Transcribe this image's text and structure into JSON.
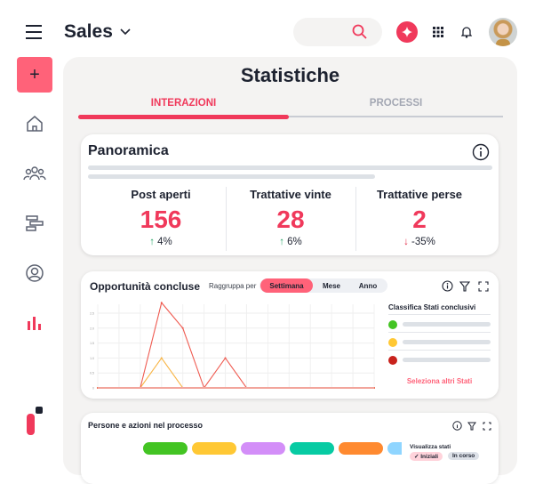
{
  "header": {
    "app_title": "Sales"
  },
  "colors": {
    "accent": "#f0395b",
    "panel": "#f4f3f2"
  },
  "main": {
    "title": "Statistiche",
    "tabs": [
      {
        "label": "INTERAZIONI",
        "active": true
      },
      {
        "label": "PROCESSI",
        "active": false
      }
    ]
  },
  "overview": {
    "title": "Panoramica",
    "stats": [
      {
        "label": "Post aperti",
        "value": "156",
        "delta": "4%",
        "trend": "up"
      },
      {
        "label": "Trattative vinte",
        "value": "28",
        "delta": "6%",
        "trend": "up"
      },
      {
        "label": "Trattative perse",
        "value": "2",
        "delta": "-35%",
        "trend": "down"
      }
    ]
  },
  "opportunities": {
    "title": "Opportunità concluse",
    "group_label": "Raggruppa per",
    "group_options": [
      "Settimana",
      "Mese",
      "Anno"
    ],
    "selected": "Settimana",
    "legend_title": "Classifica Stati conclusivi",
    "legend_colors": [
      "#43c423",
      "#ffc834",
      "#c8221c"
    ],
    "link": "Seleziona altri Stati"
  },
  "chart_data": {
    "type": "line",
    "x": [
      1,
      2,
      3,
      4,
      5,
      6,
      7,
      8,
      9,
      10,
      11,
      12,
      13,
      14
    ],
    "yticks": [
      "0",
      "0.5",
      "1.0",
      "1.5",
      "2.0",
      "2.5"
    ],
    "ylim": [
      0,
      2.5
    ],
    "series": [
      {
        "name": "rosso",
        "color": "#ef5a50",
        "values": [
          0,
          0,
          0,
          2.85,
          2,
          0,
          1,
          0,
          0,
          0,
          0,
          0,
          0,
          0
        ]
      },
      {
        "name": "giallo",
        "color": "#f8b443",
        "values": [
          0,
          0,
          0,
          1,
          0,
          0,
          0,
          0,
          0,
          0,
          0,
          0,
          0,
          0
        ]
      },
      {
        "name": "verde",
        "color": "#a6d98a",
        "values": [
          0,
          0,
          0,
          0,
          0,
          0,
          0,
          0,
          0,
          0,
          0,
          0,
          0,
          0
        ]
      }
    ]
  },
  "process": {
    "title": "Persone e azioni nel processo",
    "show_states": "Visualizza stati",
    "chips": [
      "✓ Iniziali",
      "In corso"
    ],
    "stage_colors": [
      "#43c423",
      "#ffc834",
      "#d38ef8",
      "#07cba3",
      "#ff8a30",
      "#8fd5ff"
    ]
  }
}
